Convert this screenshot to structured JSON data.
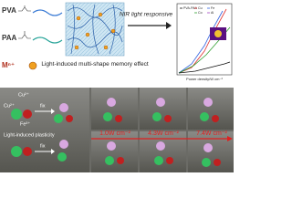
{
  "top": {
    "pva": "PVA",
    "paa": "PAA",
    "metal": "Mⁿ⁺",
    "nir": "NIR light responsive",
    "memory": "Light-induced multi-shape memory effect",
    "chart_legend": [
      "PVA-PAA",
      "Cu",
      "Fe",
      "Co",
      "Al"
    ],
    "chart_xlabel": "Power density/W cm⁻²"
  },
  "bottom": {
    "cu": "Cu²⁺",
    "fe": "Fe³⁺",
    "fix": "fix",
    "plasticity": "Light-induced plasticity",
    "powers": [
      "1.0W cm⁻²",
      "4.3W cm⁻²",
      "7.4W cm⁻²"
    ]
  }
}
